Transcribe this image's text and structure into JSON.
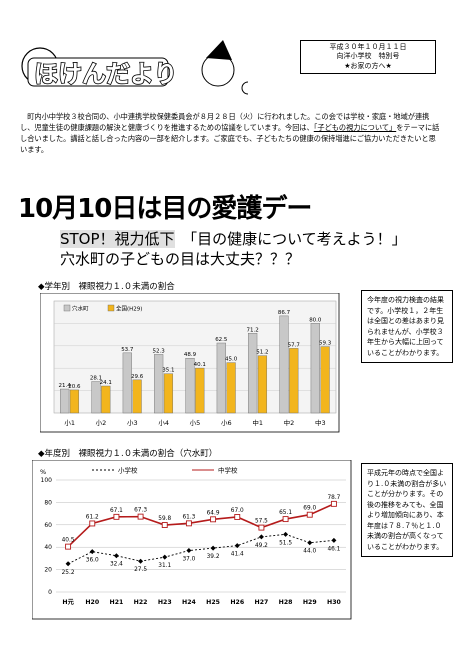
{
  "header": {
    "title": "ほけんだより",
    "date": "平成３０年１０月１１日",
    "school": "向洋小学校　特別号",
    "audience": "★お家の方へ★"
  },
  "intro": {
    "p1": "町内小中学校３校合同の、小中連携学校保健委員会が８月２８日（火）に行われました。この会では学校・家庭・地域が連携し、児童生徒の健康課題の解決と健康づくりを推進するための協議をしています。今回は、",
    "theme": "「子どもの視力について」",
    "p2": "をテーマに話し合いました。講話と話し合った内容の一部を紹介します。ご家庭でも、子どもたちの健康の保持増進にご協力いただきたいと思います。"
  },
  "headline": "10月10日は目の愛護デー",
  "subtitle": {
    "stop": "STOP！視力低下",
    "think": "「目の健康について考えよう！」",
    "question": "穴水町の子どもの目は大丈夫？？？"
  },
  "section1": {
    "heading": "◆学年別　裸眼視力１.０未満の割合",
    "note": "今年度の視力検査の結果です。小学校１，２年生は全国との差はあまり見られませんが、小学校３年生から大幅に上回っていることがわかります。"
  },
  "section2": {
    "heading": "◆年度別　裸眼視力１.０未満の割合（穴水町）",
    "note": "平成元年の時点で全国より１.０未満の割合が多いことが分かります。その後の推移をみても、全国より増加傾向にあり、本年度は７８.７％と１.０未満の割合が高くなっていることがわかります。"
  },
  "chart_data": [
    {
      "type": "bar",
      "categories": [
        "小1",
        "小2",
        "小3",
        "小4",
        "小5",
        "小6",
        "中1",
        "中2",
        "中3"
      ],
      "series": [
        {
          "name": "穴水町",
          "values": [
            21.4,
            28.1,
            53.7,
            52.3,
            48.9,
            62.5,
            71.2,
            86.7,
            80.0
          ],
          "labels": [
            "21.4",
            "28.1",
            "53.7",
            "52.3",
            "48.9",
            "62.5",
            "71.2",
            "86.7",
            "80.0"
          ],
          "color": "#c8c8c8"
        },
        {
          "name": "全国(H29)",
          "values": [
            20.6,
            24.1,
            29.6,
            35.1,
            40.1,
            45.0,
            51.2,
            57.7,
            59.3
          ],
          "labels": [
            "20.6",
            "24.1",
            "29.6",
            "35.1",
            "40.1",
            "45.0",
            "51.2",
            "57.7",
            "59.3"
          ],
          "color": "#f2b51d"
        }
      ],
      "ylim": [
        0,
        100
      ],
      "legend": "top-left"
    },
    {
      "type": "line",
      "categories": [
        "H元",
        "H20",
        "H21",
        "H22",
        "H23",
        "H24",
        "H25",
        "H26",
        "H27",
        "H28",
        "H29",
        "H30"
      ],
      "ylabel": "%",
      "ylim": [
        0,
        100
      ],
      "yticks": [
        0,
        20,
        40,
        60,
        80,
        100
      ],
      "series": [
        {
          "name": "小学校",
          "values": [
            25.2,
            36.0,
            32.4,
            27.5,
            31.1,
            37.0,
            39.2,
            41.4,
            49.2,
            51.5,
            44.0,
            46.1
          ],
          "labels": [
            "25.2",
            "36.0",
            "32.4",
            "27.5",
            "31.1",
            "37.0",
            "39.2",
            "41.4",
            "49.2",
            "51.5",
            "44.0",
            "46.1"
          ],
          "style": "dashed"
        },
        {
          "name": "中学校",
          "values": [
            40.5,
            61.2,
            67.1,
            67.3,
            59.8,
            61.3,
            64.9,
            67.0,
            57.5,
            65.1,
            69.0,
            78.7
          ],
          "labels": [
            "40.5",
            "61.2",
            "67.1",
            "67.3",
            "59.8",
            "61.3",
            "64.9",
            "67.0",
            "57.5",
            "65.1",
            "69.0",
            "78.7"
          ],
          "style": "solid",
          "color": "#b51b1b"
        }
      ],
      "legend": "top"
    }
  ]
}
